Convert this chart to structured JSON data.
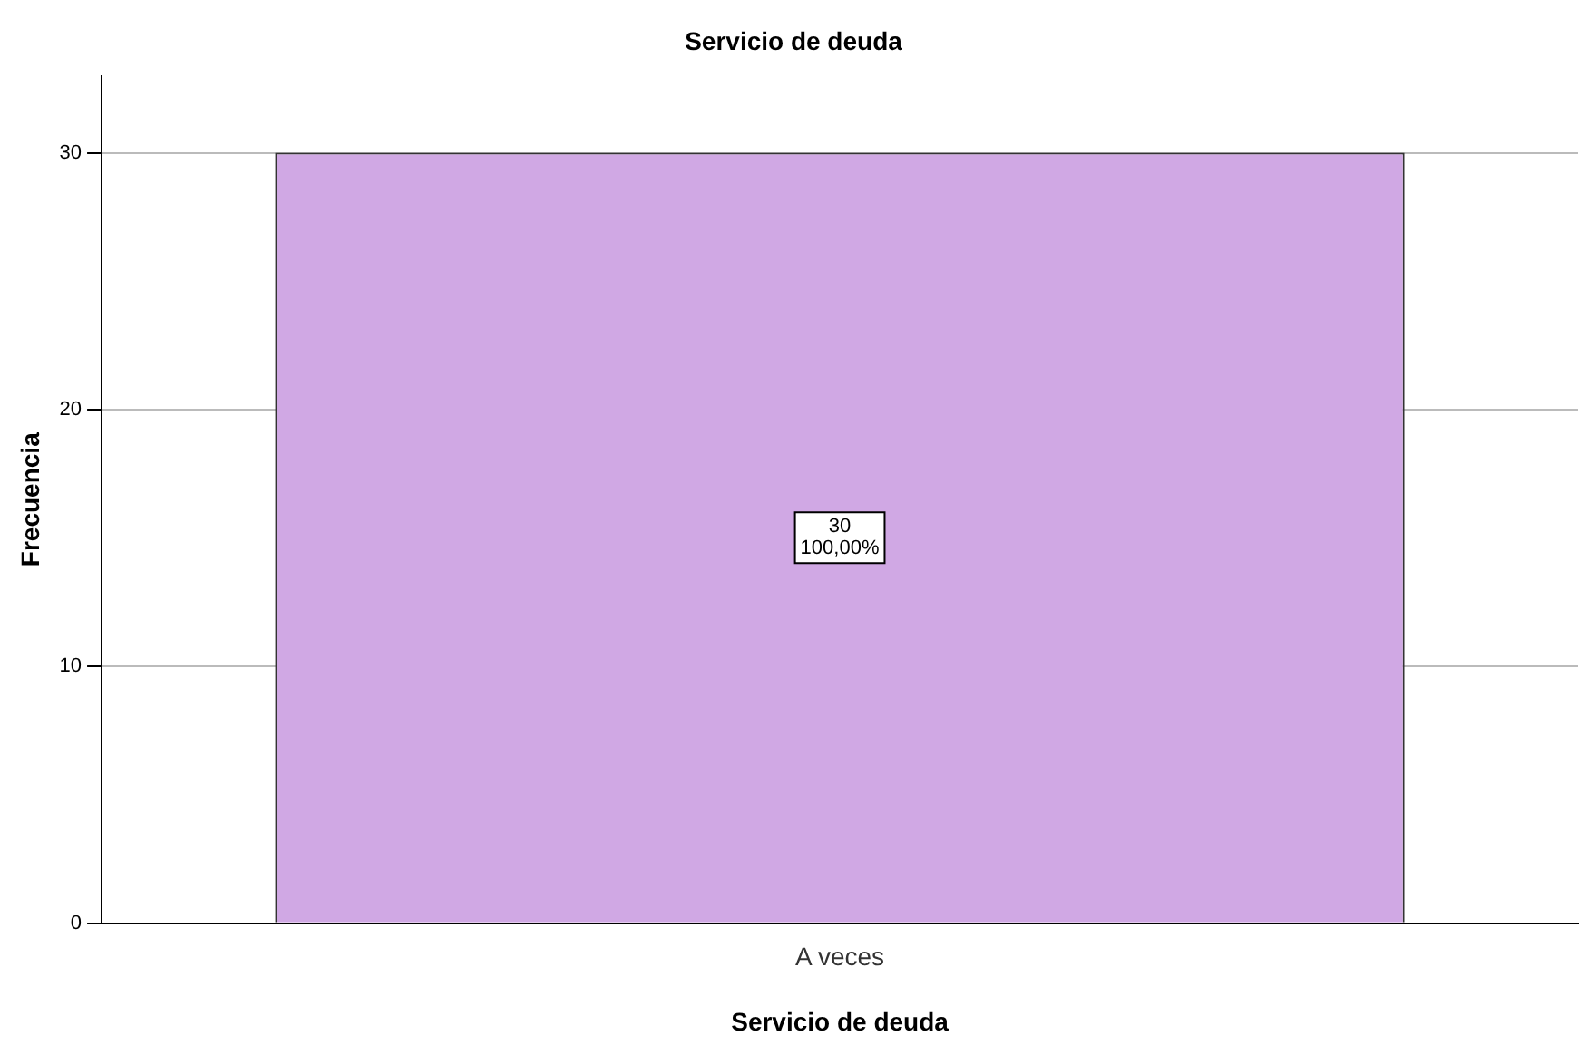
{
  "chart_data": {
    "type": "bar",
    "title": "Servicio de deuda",
    "xlabel": "Servicio de deuda",
    "ylabel": "Frecuencia",
    "categories": [
      "A veces"
    ],
    "values": [
      30
    ],
    "color": "#d0a8e4",
    "value_labels": [
      "30"
    ],
    "annotations": [
      "100,00%"
    ],
    "ylim": [
      0,
      33
    ],
    "yticks": [
      0,
      10,
      20,
      30
    ],
    "grid": "y"
  }
}
